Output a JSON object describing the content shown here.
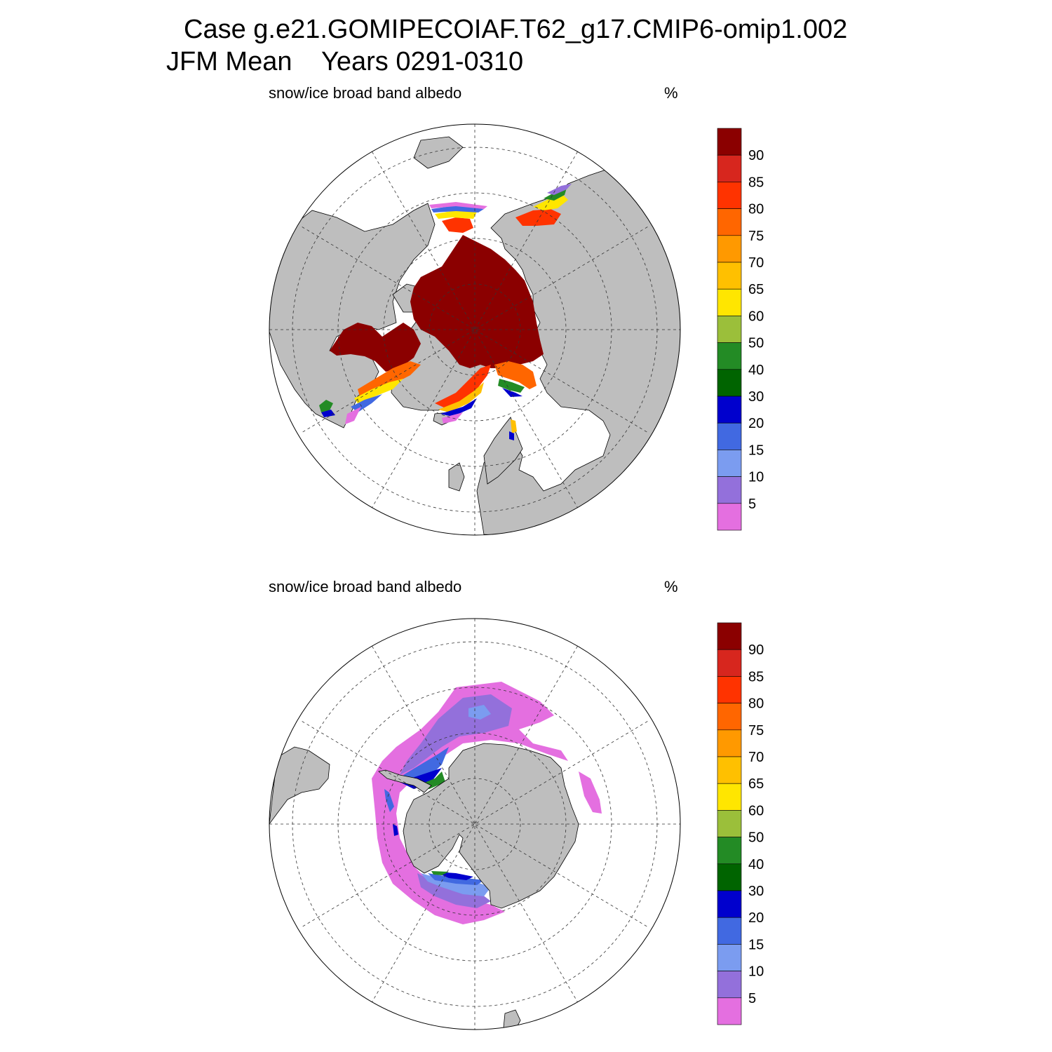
{
  "title": {
    "line1": "Case g.e21.GOMIPECOIAF.T62_g17.CMIP6-omip1.002",
    "line2": "JFM Mean    Years 0291-0310"
  },
  "panels": [
    {
      "id": "north",
      "hemisphere": "Northern Hemisphere",
      "variable": "snow/ice broad band albedo",
      "units": "%"
    },
    {
      "id": "south",
      "hemisphere": "Southern Hemisphere",
      "variable": "snow/ice broad band albedo",
      "units": "%"
    }
  ],
  "colorbar": {
    "labels": [
      "90",
      "85",
      "80",
      "75",
      "70",
      "65",
      "60",
      "50",
      "40",
      "30",
      "20",
      "15",
      "10",
      "5"
    ],
    "colors": [
      "#8b0000",
      "#d7261e",
      "#ff3300",
      "#ff6600",
      "#ff9900",
      "#ffc000",
      "#ffe600",
      "#9bbf3a",
      "#238b25",
      "#006400",
      "#0000cd",
      "#4169e1",
      "#7b9cf0",
      "#9370db",
      "#e46fe0"
    ]
  },
  "colors": {
    "land": "#bebebe",
    "ocean": "#ffffff",
    "grid": "#444444"
  }
}
